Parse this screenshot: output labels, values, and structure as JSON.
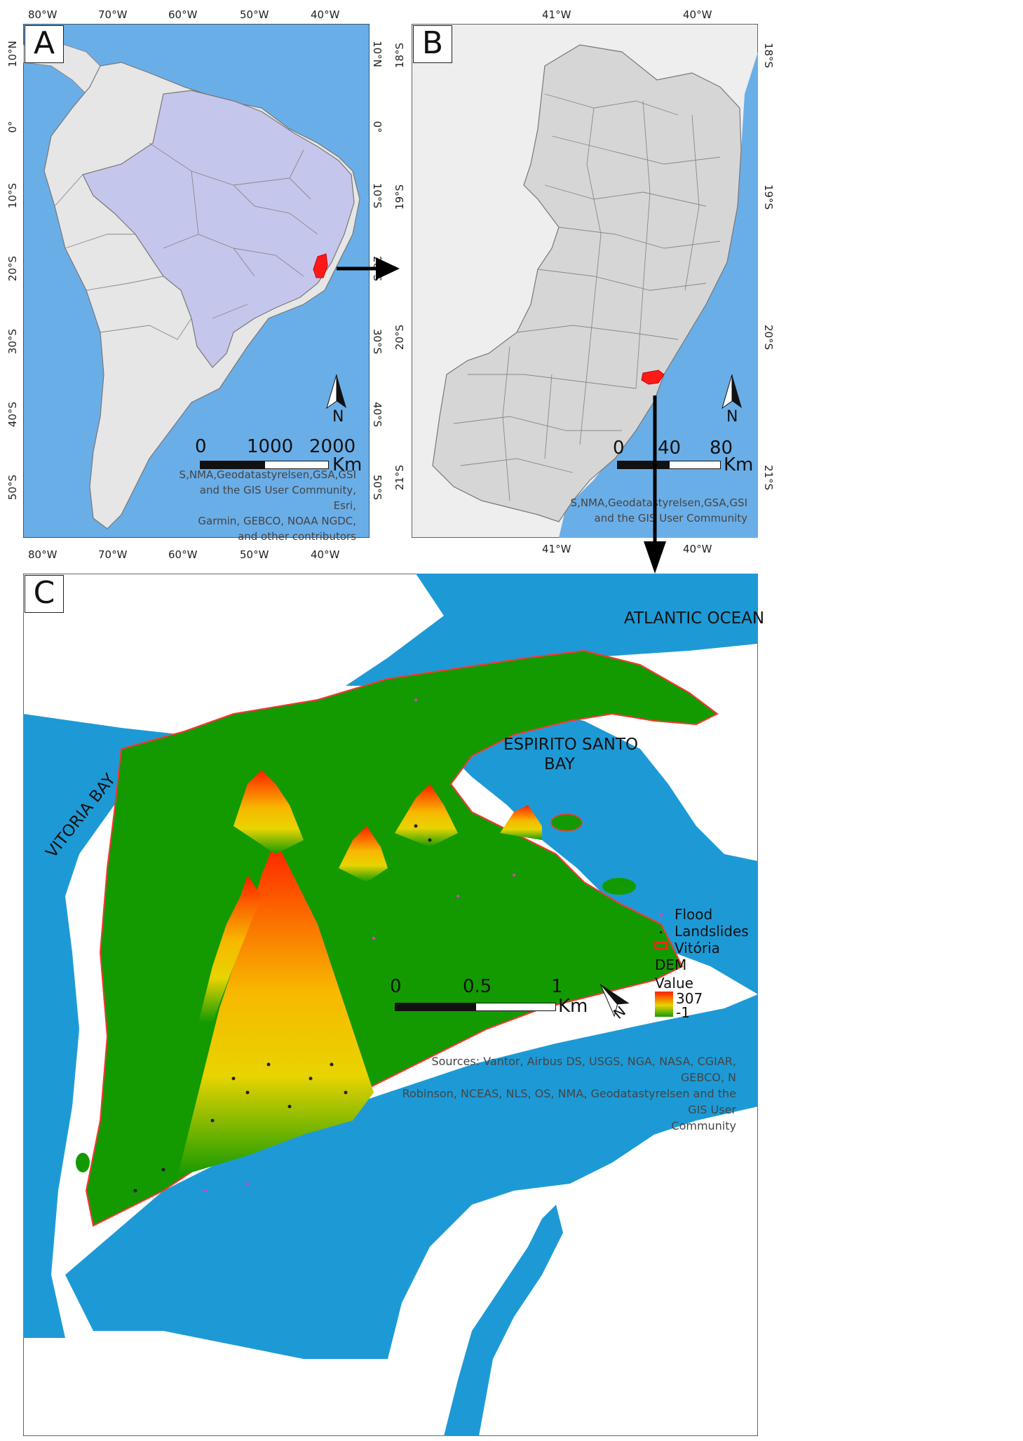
{
  "colors": {
    "ocean_a": "#6aaee8",
    "ocean_c": "#1d9ad6",
    "land_gray": "#e6e6e6",
    "brazil": "#c5c6ec",
    "highlight": "#ff1a1a",
    "dem_low": "#139a00",
    "dem_mid": "#e8d400",
    "dem_high": "#ff1e00"
  },
  "panel_a": {
    "letter": "A",
    "lon_ticks": [
      "80°W",
      "70°W",
      "60°W",
      "50°W",
      "40°W"
    ],
    "lat_ticks": [
      "10°N",
      "0°",
      "10°S",
      "20°S",
      "30°S",
      "40°S",
      "50°S"
    ],
    "scale_labels": [
      "0",
      "1000",
      "2000"
    ],
    "scale_unit": "Km",
    "north": "N",
    "attribution": [
      "S,NMA,Geodatastyrelsen,GSA,GSI",
      "and the GIS User Community, Esri,",
      "Garmin, GEBCO, NOAA NGDC,",
      "and other contributors"
    ]
  },
  "panel_b": {
    "letter": "B",
    "lon_ticks": [
      "41°W",
      "40°W"
    ],
    "lat_ticks": [
      "18°S",
      "19°S",
      "20°S",
      "21°S"
    ],
    "scale_labels": [
      "0",
      "40",
      "80"
    ],
    "scale_unit": "Km",
    "north": "N",
    "attribution": [
      "S,NMA,Geodatastyrelsen,GSA,GSI",
      "and the GIS User Community"
    ]
  },
  "panel_c": {
    "letter": "C",
    "labels": {
      "ocean": "ATLANTIC OCEAN",
      "bay_line1": "ESPIRITO SANTO",
      "bay_line2": "BAY",
      "vitoria_bay": "VITORIA BAY"
    },
    "legend": {
      "flood": "Flood",
      "landslides": "Landslides",
      "vitoria": "Vitória",
      "dem": "DEM",
      "value": "Value",
      "max": "307",
      "min": "-1"
    },
    "scale_labels": [
      "0",
      "0.5",
      "1"
    ],
    "scale_unit": "Km",
    "north": "N",
    "attribution": [
      "Sources: Vantor, Airbus DS, USGS, NGA, NASA, CGIAR, GEBCO, N",
      "Robinson, NCEAS, NLS, OS, NMA, Geodatastyrelsen and the GIS User",
      "Community"
    ]
  }
}
